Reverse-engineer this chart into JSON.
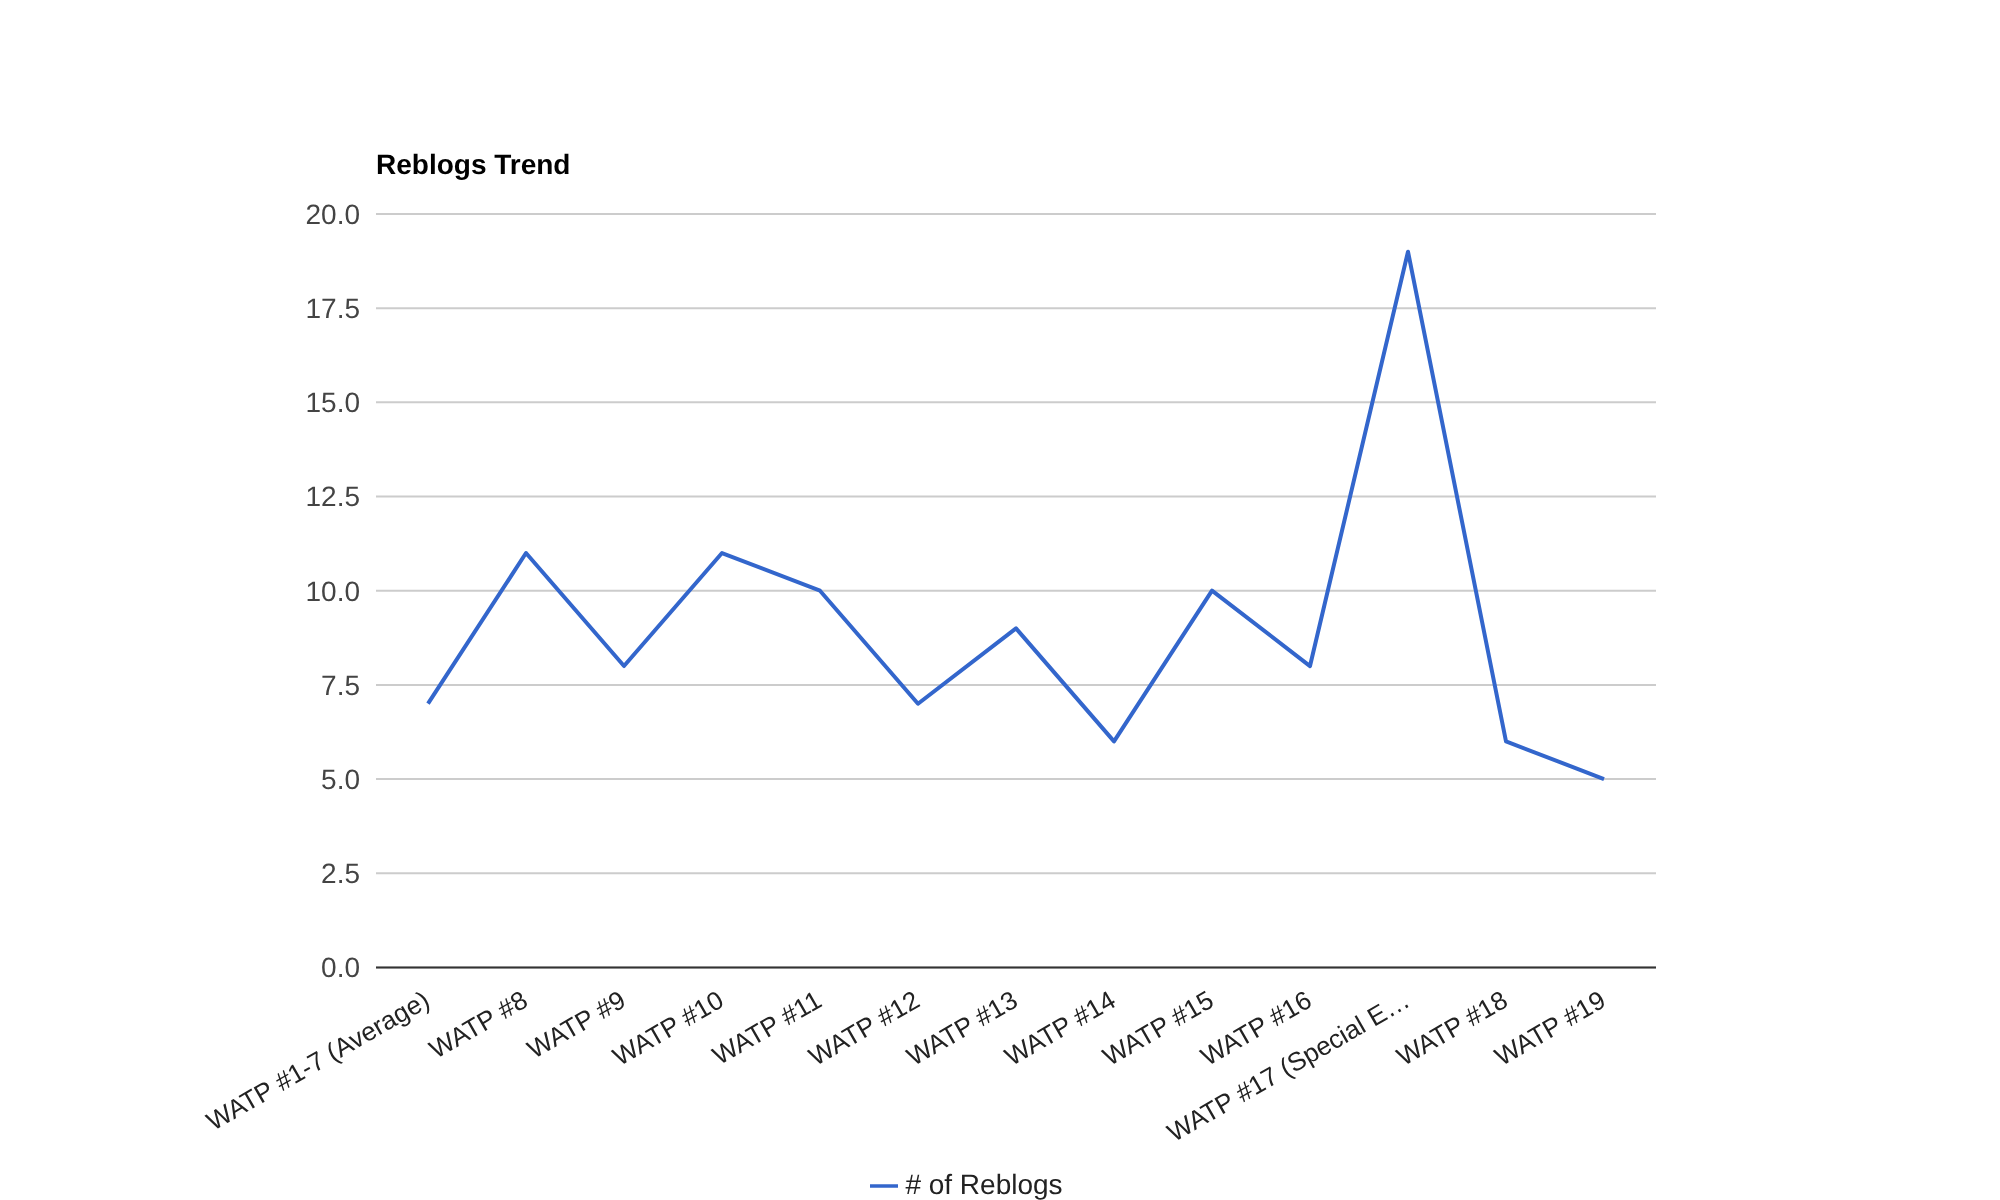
{
  "chart_data": {
    "type": "line",
    "title": "Reblogs Trend",
    "categories": [
      "WATP #1-7 (Average)",
      "WATP #8",
      "WATP #9",
      "WATP #10",
      "WATP #11",
      "WATP #12",
      "WATP #13",
      "WATP #14",
      "WATP #15",
      "WATP #16",
      "WATP #17 (Special E…",
      "WATP #18",
      "WATP #19"
    ],
    "series": [
      {
        "name": "# of Reblogs",
        "color": "#3366cc",
        "values": [
          7,
          11,
          8,
          11,
          10,
          7,
          9,
          6,
          10,
          8,
          19,
          6,
          5
        ]
      }
    ],
    "ylim": [
      0,
      20
    ],
    "yticks": [
      {
        "value": 0,
        "label": "0.0"
      },
      {
        "value": 2.5,
        "label": "2.5"
      },
      {
        "value": 5,
        "label": "5.0"
      },
      {
        "value": 7.5,
        "label": "7.5"
      },
      {
        "value": 10,
        "label": "10.0"
      },
      {
        "value": 12.5,
        "label": "12.5"
      },
      {
        "value": 15,
        "label": "15.0"
      },
      {
        "value": 17.5,
        "label": "17.5"
      },
      {
        "value": 20,
        "label": "20.0"
      }
    ],
    "grid": "y",
    "legend": "bottom",
    "marker": "none",
    "line_style": "solid"
  }
}
